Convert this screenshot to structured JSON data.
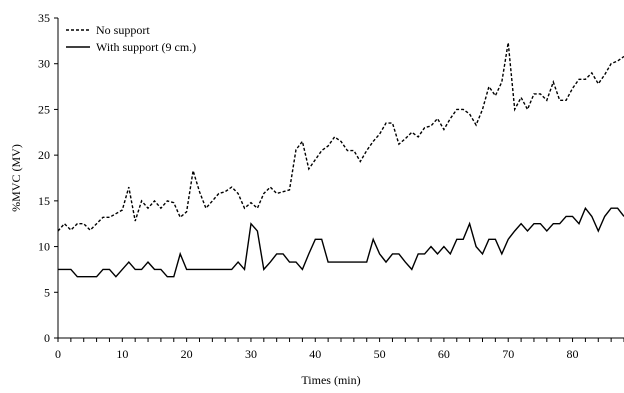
{
  "chart_data": {
    "type": "line",
    "title": "",
    "xlabel": "Times (min)",
    "ylabel": "%MVC (MV)",
    "xlim": [
      0,
      88
    ],
    "ylim": [
      0,
      35
    ],
    "xticks": [
      0,
      10,
      20,
      30,
      40,
      50,
      60,
      70,
      80
    ],
    "yticks": [
      0,
      5,
      10,
      15,
      20,
      25,
      30,
      35
    ],
    "grid": false,
    "legend": "top-left",
    "series": [
      {
        "name": "No support",
        "style": "dashed",
        "color": "#000000",
        "x": [
          0,
          1,
          2,
          3,
          4,
          5,
          6,
          7,
          8,
          9,
          10,
          11,
          12,
          13,
          14,
          15,
          16,
          17,
          18,
          19,
          20,
          21,
          22,
          23,
          24,
          25,
          26,
          27,
          28,
          29,
          30,
          31,
          32,
          33,
          34,
          35,
          36,
          37,
          38,
          39,
          40,
          41,
          42,
          43,
          44,
          45,
          46,
          47,
          48,
          49,
          50,
          51,
          52,
          53,
          54,
          55,
          56,
          57,
          58,
          59,
          60,
          61,
          62,
          63,
          64,
          65,
          66,
          67,
          68,
          69,
          70,
          71,
          72,
          73,
          74,
          75,
          76,
          77,
          78,
          79,
          80,
          81,
          82,
          83,
          84,
          85,
          86,
          87,
          88
        ],
        "y": [
          11.7,
          12.5,
          11.8,
          12.5,
          12.5,
          11.8,
          12.5,
          13.2,
          13.2,
          13.6,
          14.0,
          16.5,
          12.8,
          15.0,
          14.2,
          15.0,
          14.2,
          15.0,
          14.8,
          13.2,
          13.8,
          18.3,
          16.0,
          14.2,
          15.0,
          15.8,
          16.0,
          16.5,
          15.8,
          14.2,
          14.8,
          14.2,
          15.8,
          16.5,
          15.8,
          16.0,
          16.2,
          20.6,
          21.5,
          18.5,
          19.5,
          20.5,
          21.0,
          22.0,
          21.5,
          20.5,
          20.5,
          19.3,
          20.5,
          21.5,
          22.3,
          23.5,
          23.5,
          21.2,
          21.8,
          22.5,
          22.0,
          23.0,
          23.2,
          24.0,
          22.8,
          24.0,
          25.0,
          25.0,
          24.5,
          23.3,
          25.0,
          27.5,
          26.5,
          28.0,
          32.3,
          25.0,
          26.3,
          25.0,
          26.7,
          26.7,
          26.0,
          28.0,
          26.0,
          26.0,
          27.3,
          28.3,
          28.3,
          29.0,
          27.8,
          28.8,
          30.0,
          30.3,
          30.8
        ]
      },
      {
        "name": "With support (9 cm.)",
        "style": "solid",
        "color": "#000000",
        "x": [
          0,
          1,
          2,
          3,
          4,
          5,
          6,
          7,
          8,
          9,
          10,
          11,
          12,
          13,
          14,
          15,
          16,
          17,
          18,
          19,
          20,
          21,
          22,
          23,
          24,
          25,
          26,
          27,
          28,
          29,
          30,
          31,
          32,
          33,
          34,
          35,
          36,
          37,
          38,
          39,
          40,
          41,
          42,
          43,
          44,
          45,
          46,
          47,
          48,
          49,
          50,
          51,
          52,
          53,
          54,
          55,
          56,
          57,
          58,
          59,
          60,
          61,
          62,
          63,
          64,
          65,
          66,
          67,
          68,
          69,
          70,
          71,
          72,
          73,
          74,
          75,
          76,
          77,
          78,
          79,
          80,
          81,
          82,
          83,
          84,
          85,
          86,
          87,
          88
        ],
        "y": [
          7.5,
          7.5,
          7.5,
          6.7,
          6.7,
          6.7,
          6.7,
          7.5,
          7.5,
          6.7,
          7.5,
          8.3,
          7.5,
          7.5,
          8.3,
          7.5,
          7.5,
          6.7,
          6.7,
          9.2,
          7.5,
          7.5,
          7.5,
          7.5,
          7.5,
          7.5,
          7.5,
          7.5,
          8.3,
          7.5,
          12.5,
          11.7,
          7.5,
          8.3,
          9.2,
          9.2,
          8.3,
          8.3,
          7.5,
          9.2,
          10.8,
          10.8,
          8.3,
          8.3,
          8.3,
          8.3,
          8.3,
          8.3,
          8.3,
          10.8,
          9.2,
          8.3,
          9.2,
          9.2,
          8.3,
          7.5,
          9.2,
          9.2,
          10.0,
          9.2,
          10.0,
          9.2,
          10.8,
          10.8,
          12.5,
          10.0,
          9.2,
          10.8,
          10.8,
          9.2,
          10.8,
          11.7,
          12.5,
          11.7,
          12.5,
          12.5,
          11.7,
          12.5,
          12.5,
          13.3,
          13.3,
          12.5,
          14.2,
          13.3,
          11.7,
          13.3,
          14.2,
          14.2,
          13.3
        ]
      }
    ]
  }
}
